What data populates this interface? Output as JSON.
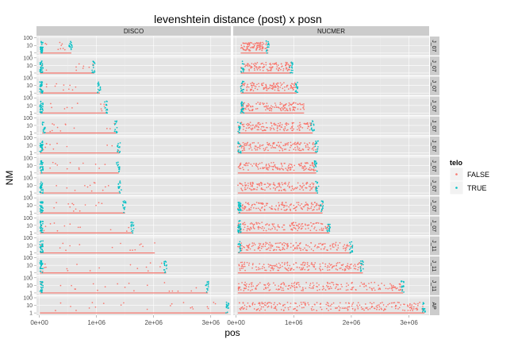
{
  "chart_data": {
    "type": "scatter",
    "title": "levenshtein distance (post) x posn",
    "xlabel": "pos",
    "ylabel": "NM",
    "x_ticks": [
      0,
      1000000,
      2000000,
      3000000
    ],
    "x_tick_labels": [
      "0e+00",
      "1e+06",
      "2e+06",
      "3e+06"
    ],
    "xlim": [
      -50000,
      3350000
    ],
    "y_scale": "log10",
    "y_ticks": [
      1,
      10,
      100
    ],
    "y_tick_labels": [
      "1",
      "10",
      "100"
    ],
    "ylim": [
      0.5,
      150
    ],
    "grid": true,
    "legend": {
      "title": "telo",
      "position": "right",
      "entries": [
        "FALSE",
        "TRUE"
      ]
    },
    "colors": {
      "FALSE": "#F8766D",
      "TRUE": "#00BFC4",
      "panel_bg": "#E5E5E5",
      "strip_bg": "#CCCCCC"
    },
    "column_facets": [
      "DISCO",
      "NUCMER"
    ],
    "row_strip_labels": [
      "J_07",
      "J_07",
      "J_07",
      "J_07",
      "J_07",
      "J_07",
      "J_07",
      "J_07",
      "J_07",
      "J_07",
      "J_11",
      "J_11",
      "J_11",
      "AP"
    ],
    "rows": [
      {
        "DISCO": {
          "start": 10000,
          "end": 560000,
          "telo_left": 40000,
          "telo_right": 530000
        },
        "NUCMER": {
          "start": 80000,
          "end": 560000,
          "telo_left": 0,
          "telo_right": 400000
        }
      },
      {
        "DISCO": {
          "start": 10000,
          "end": 960000,
          "telo_left": 40000,
          "telo_right": 880000
        },
        "NUCMER": {
          "start": 80000,
          "end": 960000,
          "telo_left": 0,
          "telo_right": 0
        }
      },
      {
        "DISCO": {
          "start": 10000,
          "end": 1060000,
          "telo_left": 40000,
          "telo_right": 1020000
        },
        "NUCMER": {
          "start": 80000,
          "end": 1050000,
          "telo_left": 0,
          "telo_right": 0
        }
      },
      {
        "DISCO": {
          "start": 10000,
          "end": 1180000,
          "telo_left": 70000,
          "telo_right": 1140000
        },
        "NUCMER": {
          "start": 80000,
          "end": 1180000,
          "telo_left": 180000,
          "telo_right": 0
        }
      },
      {
        "DISCO": {
          "start": 50000,
          "end": 1340000,
          "telo_left": 0,
          "telo_right": 0
        },
        "NUCMER": {
          "start": 30000,
          "end": 1330000,
          "telo_left": 0,
          "telo_right": 0
        }
      },
      {
        "DISCO": {
          "start": 10000,
          "end": 1400000,
          "telo_left": 60000,
          "telo_right": 1320000
        },
        "NUCMER": {
          "start": 30000,
          "end": 1400000,
          "telo_left": 0,
          "telo_right": 0
        }
      },
      {
        "DISCO": {
          "start": 10000,
          "end": 1390000,
          "telo_left": 60000,
          "telo_right": 1300000
        },
        "NUCMER": {
          "start": 30000,
          "end": 1390000,
          "telo_left": 0,
          "telo_right": 1300000
        }
      },
      {
        "DISCO": {
          "start": 10000,
          "end": 1420000,
          "telo_left": 60000,
          "telo_right": 1340000
        },
        "NUCMER": {
          "start": 30000,
          "end": 1420000,
          "telo_left": 0,
          "telo_right": 1350000
        }
      },
      {
        "DISCO": {
          "start": 10000,
          "end": 1500000,
          "telo_left": 60000,
          "telo_right": 1420000
        },
        "NUCMER": {
          "start": 30000,
          "end": 1500000,
          "telo_left": 200000,
          "telo_right": 1420000
        }
      },
      {
        "DISCO": {
          "start": 10000,
          "end": 1640000,
          "telo_left": 60000,
          "telo_right": 1540000
        },
        "NUCMER": {
          "start": 30000,
          "end": 1620000,
          "telo_left": 200000,
          "telo_right": 1530000
        }
      },
      {
        "DISCO": {
          "start": 10000,
          "end": 2020000,
          "telo_left": 60000,
          "telo_right": 0
        },
        "NUCMER": {
          "start": 30000,
          "end": 2000000,
          "telo_left": 0,
          "telo_right": 0
        }
      },
      {
        "DISCO": {
          "start": 10000,
          "end": 2220000,
          "telo_left": 60000,
          "telo_right": 2130000
        },
        "NUCMER": {
          "start": 30000,
          "end": 2200000,
          "telo_left": 0,
          "telo_right": 2130000
        }
      },
      {
        "DISCO": {
          "start": 10000,
          "end": 2950000,
          "telo_left": 60000,
          "telo_right": 2850000
        },
        "NUCMER": {
          "start": 30000,
          "end": 2900000,
          "telo_left": 0,
          "telo_right": 2850000
        }
      },
      {
        "DISCO": {
          "start": 10000,
          "end": 3300000,
          "telo_left": 0,
          "telo_right": 3150000
        },
        "NUCMER": {
          "start": 30000,
          "end": 3270000,
          "telo_left": 0,
          "telo_right": 3150000
        }
      }
    ]
  }
}
